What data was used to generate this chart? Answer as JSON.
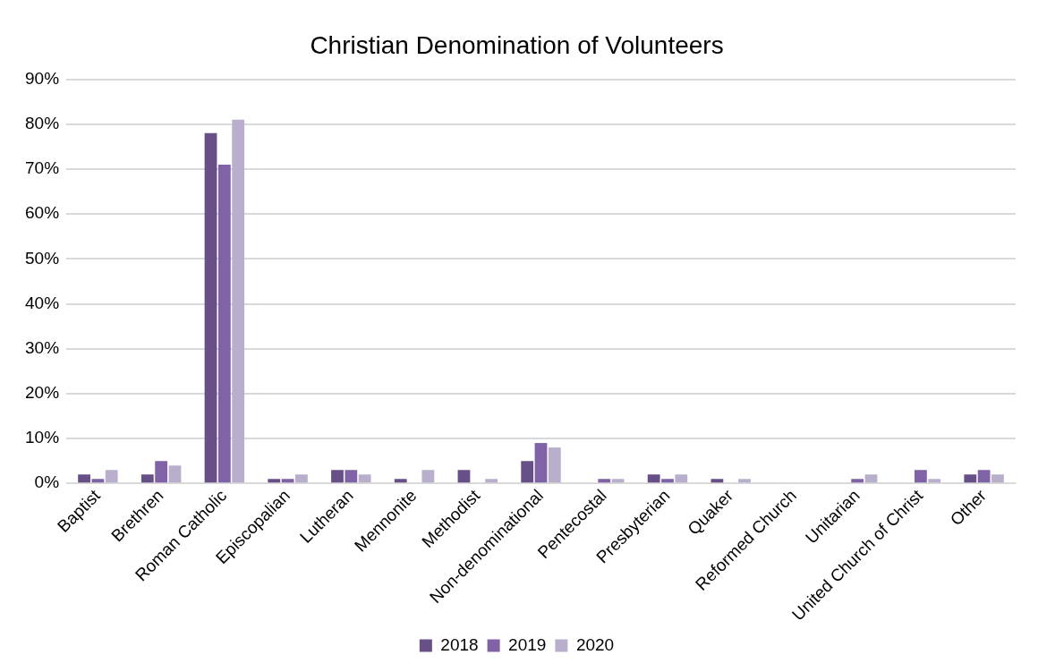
{
  "chart_data": {
    "type": "bar",
    "title": "Christian Denomination of Volunteers",
    "categories": [
      "Baptist",
      "Brethren",
      "Roman Catholic",
      "Episcopalian",
      "Lutheran",
      "Mennonite",
      "Methodist",
      "Non-denominational",
      "Pentecostal",
      "Presbyterian",
      "Quaker",
      "Reformed Church",
      "Unitarian",
      "United Church of Christ",
      "Other"
    ],
    "series": [
      {
        "name": "2018",
        "color": "#674f87",
        "values": [
          2,
          2,
          78,
          1,
          3,
          1,
          3,
          5,
          0,
          2,
          1,
          0,
          0,
          0,
          2
        ]
      },
      {
        "name": "2019",
        "color": "#8063a6",
        "values": [
          1,
          5,
          71,
          1,
          3,
          0,
          0,
          9,
          1,
          1,
          0,
          0,
          1,
          3,
          3
        ]
      },
      {
        "name": "2020",
        "color": "#b9afcc",
        "values": [
          3,
          4,
          81,
          2,
          2,
          3,
          1,
          8,
          1,
          2,
          1,
          0,
          2,
          1,
          2
        ]
      }
    ],
    "ylim": [
      0,
      90
    ],
    "yticks": [
      {
        "value": 0,
        "label": "0%"
      },
      {
        "value": 10,
        "label": "10%"
      },
      {
        "value": 20,
        "label": "20%"
      },
      {
        "value": 30,
        "label": "30%"
      },
      {
        "value": 40,
        "label": "40%"
      },
      {
        "value": 50,
        "label": "50%"
      },
      {
        "value": 60,
        "label": "60%"
      },
      {
        "value": 70,
        "label": "70%"
      },
      {
        "value": 80,
        "label": "80%"
      },
      {
        "value": 90,
        "label": "90%"
      }
    ],
    "grid": "y",
    "legend": "bottom"
  }
}
